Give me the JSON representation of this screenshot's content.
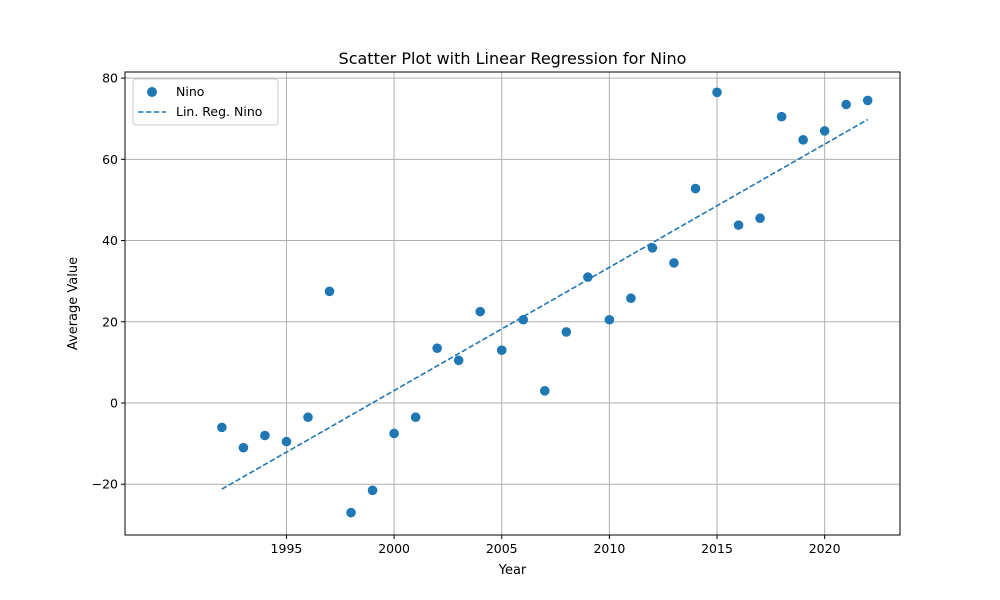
{
  "chart_data": {
    "type": "scatter",
    "title": "Scatter Plot with Linear Regression for Nino",
    "xlabel": "Year",
    "ylabel": "Average Value",
    "xlim": [
      1987.5,
      2023.5
    ],
    "ylim": [
      -32.5,
      81.5
    ],
    "xticks": [
      1995,
      2000,
      2005,
      2010,
      2015,
      2020
    ],
    "yticks": [
      -20,
      0,
      20,
      40,
      60,
      80
    ],
    "grid": true,
    "legend_position": "top-left",
    "colors": {
      "series": "#1f77b4"
    },
    "legend": [
      {
        "label": "Nino",
        "kind": "marker"
      },
      {
        "label": "Lin. Reg. Nino",
        "kind": "dashed-line"
      }
    ],
    "series": [
      {
        "name": "Nino",
        "x": [
          1992,
          1993,
          1994,
          1995,
          1996,
          1997,
          1998,
          1999,
          2000,
          2001,
          2002,
          2003,
          2004,
          2005,
          2006,
          2007,
          2008,
          2009,
          2010,
          2011,
          2012,
          2013,
          2014,
          2015,
          2016,
          2017,
          2018,
          2019,
          2020,
          2021,
          2022
        ],
        "y": [
          -6,
          -11,
          -8,
          -9.5,
          -3.5,
          27.5,
          -27,
          -21.5,
          -7.5,
          -3.5,
          13.5,
          10.5,
          22.5,
          13,
          20.5,
          3,
          17.5,
          31,
          20.5,
          25.8,
          38.2,
          34.5,
          52.8,
          76.5,
          43.8,
          45.5,
          70.5,
          64.8,
          67,
          73.5,
          74.5
        ]
      },
      {
        "name": "Lin. Reg. Nino",
        "x": [
          1992,
          2022
        ],
        "y": [
          -21.2,
          69.8
        ]
      }
    ]
  }
}
